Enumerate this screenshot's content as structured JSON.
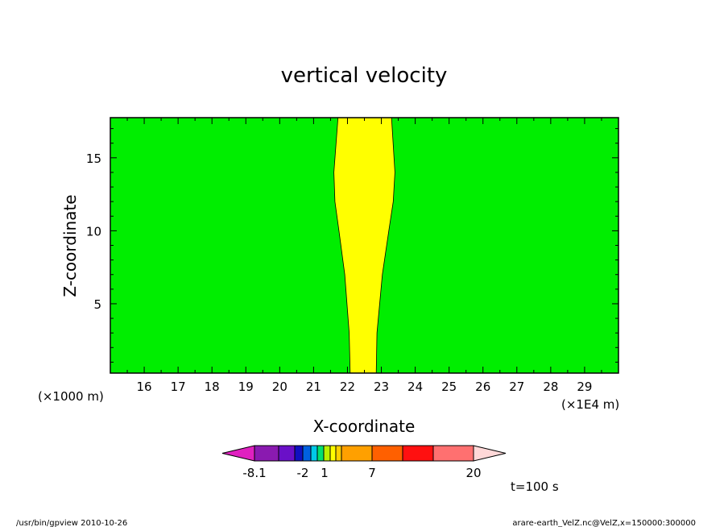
{
  "chart_data": {
    "type": "heatmap",
    "title": "vertical velocity",
    "xlabel": "X-coordinate",
    "ylabel": "Z-coordinate",
    "x_unit": "(×1E4 m)",
    "y_unit": "(×1000 m)",
    "xlim": [
      15.0,
      30.0
    ],
    "ylim": [
      0.25,
      17.75
    ],
    "x_ticks": [
      "16",
      "17",
      "18",
      "19",
      "20",
      "21",
      "22",
      "23",
      "24",
      "25",
      "26",
      "27",
      "28",
      "29"
    ],
    "y_ticks": [
      "5",
      "10",
      "15"
    ],
    "background_level_color": "#00ee00",
    "contour_fill_color": "#ffff00",
    "contour_region": {
      "z": [
        0.25,
        3.0,
        7.0,
        10.0,
        12.0,
        14.0,
        17.75
      ],
      "x_left": [
        22.08,
        22.05,
        21.92,
        21.75,
        21.63,
        21.6,
        21.72
      ],
      "x_right": [
        22.85,
        22.87,
        23.03,
        23.22,
        23.35,
        23.4,
        23.3
      ]
    },
    "colorbar": {
      "colors": [
        "#e020c0",
        "#8a1ab0",
        "#6a10c8",
        "#1010c0",
        "#0060e0",
        "#00c8e8",
        "#00e070",
        "#b8f000",
        "#ffff00",
        "#ffd000",
        "#ffa000",
        "#ff6000",
        "#ff1010",
        "#ff7070",
        "#ffb6b6",
        "#ffd8d8"
      ],
      "labels": [
        "-8.1",
        "-2",
        "1",
        "7",
        "20"
      ]
    },
    "time_label": "t=100 s"
  },
  "footer": {
    "left": "/usr/bin/gpview   2010-10-26",
    "right": "arare-earth_VelZ.nc@VelZ,x=150000:300000"
  }
}
